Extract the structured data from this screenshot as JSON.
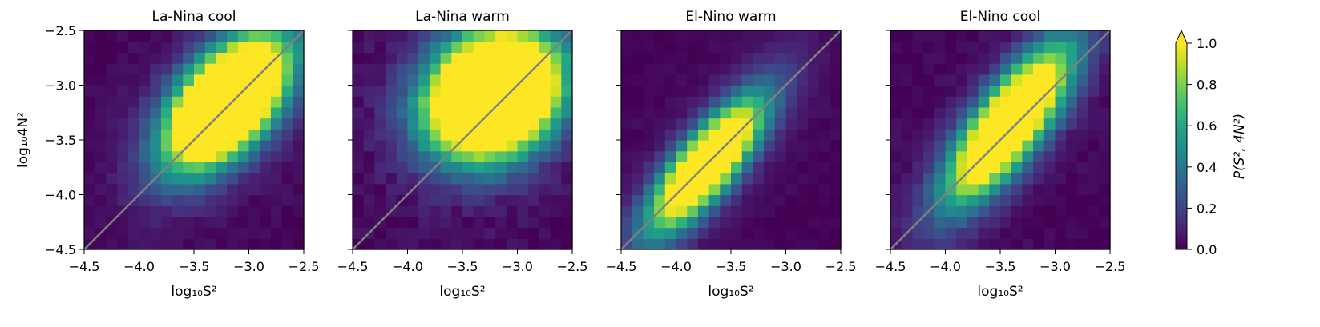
{
  "chart_data": {
    "type": "heatmap",
    "colormap": "viridis",
    "grid": false,
    "x_range": [
      -4.5,
      -2.5
    ],
    "y_range": [
      -4.5,
      -2.5
    ],
    "bins": 20,
    "xticks": [
      "−4.5",
      "−4.0",
      "−3.5",
      "−3.0",
      "−2.5"
    ],
    "yticks": [
      "−4.5",
      "−4.0",
      "−3.5",
      "−3.0",
      "−2.5"
    ],
    "xlabel": "log₁₀S²",
    "ylabel": "log₁₀4N²",
    "reference_line": {
      "from": [
        -4.5,
        -4.5
      ],
      "to": [
        -2.5,
        -2.5
      ],
      "color": "#808080"
    },
    "colorbar": {
      "label": "P(S², 4N²)",
      "range": [
        0,
        1.0
      ],
      "extend": "max",
      "ticks": [
        "0.0",
        "0.2",
        "0.4",
        "0.6",
        "0.8",
        "1.0"
      ]
    },
    "panels": [
      {
        "title": "La-Nina cool",
        "peak": {
          "x": -3.2,
          "y": -3.15
        },
        "spread_x": 0.37,
        "spread_y": 0.4,
        "corr": 0.55,
        "amp": 2.2,
        "noise": 0.03
      },
      {
        "title": "La-Nina warm",
        "peak": {
          "x": -3.22,
          "y": -3.08
        },
        "spread_x": 0.4,
        "spread_y": 0.38,
        "corr": 0.2,
        "amp": 2.4,
        "noise": 0.045
      },
      {
        "title": "El-Nino warm",
        "peak": {
          "x": -3.72,
          "y": -3.72
        },
        "spread_x": 0.36,
        "spread_y": 0.42,
        "corr": 0.8,
        "amp": 1.6,
        "noise": 0.02
      },
      {
        "title": "El-Nino cool",
        "peak": {
          "x": -3.42,
          "y": -3.35
        },
        "spread_x": 0.38,
        "spread_y": 0.48,
        "corr": 0.78,
        "amp": 1.7,
        "noise": 0.03
      }
    ]
  }
}
